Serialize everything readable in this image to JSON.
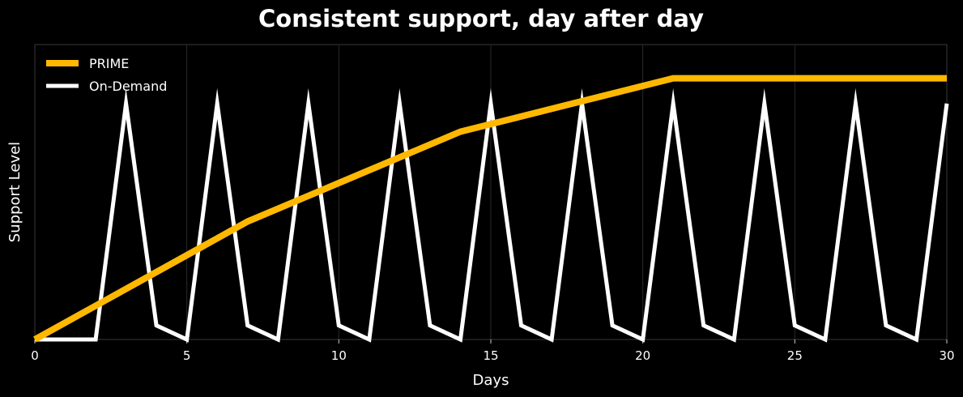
{
  "chart_data": {
    "type": "line",
    "title": "Consistent support, day after day",
    "xlabel": "Days",
    "ylabel": "Support Level",
    "xlim": [
      0,
      30
    ],
    "ylim": [
      0,
      10.5
    ],
    "xticks": [
      0,
      5,
      10,
      15,
      20,
      25,
      30
    ],
    "yticks_shown": false,
    "grid": "vertical",
    "legend_position": "top-left",
    "series": [
      {
        "name": "PRIME",
        "color": "#FFB800",
        "x": [
          0,
          7,
          14,
          21,
          30
        ],
        "y": [
          0,
          4.2,
          7.4,
          9.3,
          9.3
        ]
      },
      {
        "name": "On-Demand",
        "color": "#FFFFFF",
        "x": [
          0,
          2,
          3,
          4,
          5,
          6,
          7,
          8,
          9,
          10,
          11,
          12,
          13,
          14,
          15,
          16,
          17,
          18,
          19,
          20,
          21,
          22,
          23,
          24,
          25,
          26,
          27,
          28,
          29,
          30
        ],
        "y": [
          0,
          0,
          8.4,
          0.5,
          0,
          8.4,
          0.5,
          0,
          8.4,
          0.5,
          0,
          8.4,
          0.5,
          0,
          8.4,
          0.5,
          0,
          8.4,
          0.5,
          0,
          8.4,
          0.5,
          0,
          8.4,
          0.5,
          0,
          8.4,
          0.5,
          0,
          8.4
        ]
      }
    ]
  }
}
